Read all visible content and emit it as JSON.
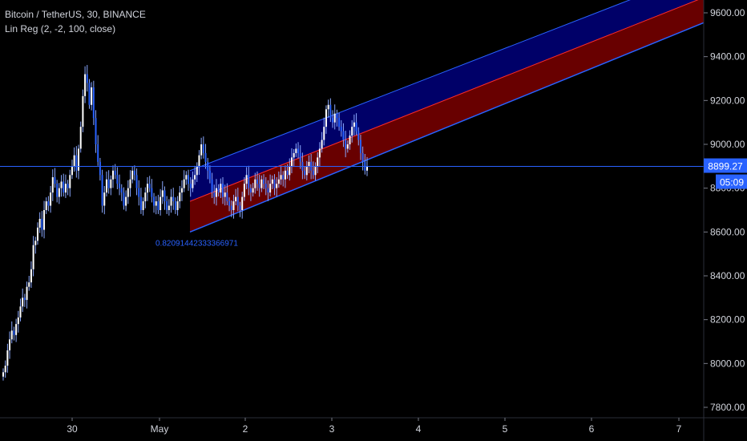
{
  "header": {
    "symbol_line": "Bitcoin / TetherUS, 30, BINANCE",
    "indicator_line": "Lin Reg (2, -2, 100, close)"
  },
  "chart_data": {
    "type": "candlestick",
    "symbol": "Bitcoin / TetherUS",
    "interval": "30",
    "exchange": "BINANCE",
    "indicator": {
      "name": "Lin Reg",
      "params": "(2, -2, 100, close)",
      "label": "0.82091442333366971",
      "start": {
        "x": "May 1 ~08:00",
        "upper": 8880,
        "mid": 8740,
        "lower": 8600
      },
      "end": {
        "x": "May 7 ~24:00",
        "upper": 9790,
        "mid": 9670,
        "lower": 9555
      },
      "upper_color": "#00008b",
      "lower_color": "#8b0000"
    },
    "last_price": "8899.27",
    "countdown": "05:09",
    "y_ticks": [
      "9600.00",
      "9400.00",
      "9200.00",
      "9000.00",
      "8800.00",
      "8600.00",
      "8400.00",
      "8200.00",
      "8000.00",
      "7800.00"
    ],
    "ylim": [
      7800,
      9600
    ],
    "x_ticks": [
      "30",
      "May",
      "2",
      "3",
      "4",
      "5",
      "6",
      "7"
    ],
    "candles": [
      7960,
      7990,
      8060,
      8110,
      8150,
      8130,
      8180,
      8210,
      8260,
      8300,
      8290,
      8350,
      8370,
      8430,
      8540,
      8560,
      8620,
      8660,
      8610,
      8700,
      8740,
      8720,
      8780,
      8850,
      8820,
      8760,
      8800,
      8830,
      8780,
      8820,
      8800,
      8860,
      8900,
      8950,
      8880,
      8980,
      9080,
      9220,
      9320,
      9280,
      9180,
      9260,
      9120,
      9000,
      8920,
      8860,
      8720,
      8780,
      8840,
      8800,
      8840,
      8880,
      8860,
      8820,
      8800,
      8780,
      8720,
      8760,
      8800,
      8840,
      8880,
      8860,
      8800,
      8760,
      8700,
      8740,
      8780,
      8820,
      8800,
      8760,
      8720,
      8740,
      8700,
      8760,
      8790,
      8740,
      8700,
      8720,
      8760,
      8740,
      8700,
      8740,
      8780,
      8800,
      8840,
      8860,
      8820,
      8800,
      8840,
      8860,
      8900,
      8950,
      9000,
      8960,
      8920,
      8880,
      8840,
      8780,
      8760,
      8800,
      8780,
      8820,
      8760,
      8780,
      8740,
      8720,
      8700,
      8740,
      8760,
      8720,
      8700,
      8760,
      8820,
      8860,
      8800,
      8780,
      8800,
      8840,
      8820,
      8800,
      8840,
      8820,
      8800,
      8780,
      8820,
      8840,
      8800,
      8820,
      8840,
      8860,
      8840,
      8880,
      8860,
      8900,
      8940,
      8960,
      8980,
      8960,
      8920,
      8880,
      8860,
      8900,
      8920,
      8880,
      8860,
      8900,
      8940,
      8980,
      9020,
      9080,
      9160,
      9180,
      9120,
      9100,
      9140,
      9120,
      9080,
      9060,
      9020,
      8980,
      9000,
      9040,
      9080,
      9100,
      9060,
      9020,
      8960,
      8920,
      8880,
      8900
    ]
  }
}
